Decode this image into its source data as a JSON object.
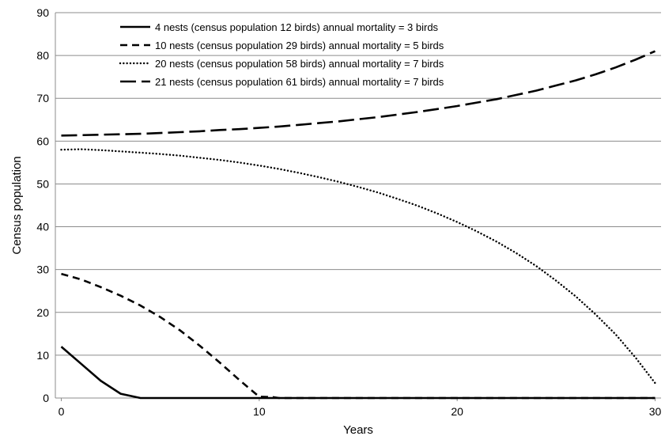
{
  "chart_data": {
    "type": "line",
    "xlabel": "Years",
    "ylabel": "Census population",
    "xlim": [
      -0.3,
      30.3
    ],
    "ylim": [
      0,
      90
    ],
    "x_ticks": [
      0,
      10,
      20,
      30
    ],
    "y_ticks": [
      0,
      10,
      20,
      30,
      40,
      50,
      60,
      70,
      80,
      90
    ],
    "grid": "horizontal",
    "legend_position": "top-center",
    "line_color": "#000000",
    "grid_color": "#8c8c8c",
    "series": [
      {
        "name": "4 nests (census population 12 birds)  annual mortality = 3 birds",
        "dash": "solid",
        "x": [
          0,
          1,
          2,
          3,
          4,
          5,
          10,
          15,
          20,
          25,
          30
        ],
        "y": [
          12,
          8,
          4,
          1,
          0,
          0,
          0,
          0,
          0,
          0,
          0
        ]
      },
      {
        "name": "10 nests (census population 29 birds)  annual mortality = 5 birds",
        "dash": "dashed",
        "x": [
          0,
          1,
          2,
          3,
          4,
          5,
          6,
          7,
          8,
          9,
          10,
          10.7,
          11,
          15,
          20,
          25,
          30
        ],
        "y": [
          29,
          27.7,
          25.9,
          23.9,
          21.6,
          18.9,
          15.8,
          12.2,
          8.3,
          4.2,
          0.3,
          0.2,
          0,
          0,
          0,
          0,
          0
        ]
      },
      {
        "name": "20 nests (census population 58 birds)  annual mortality = 7 birds",
        "dash": "dotted",
        "x": [
          0,
          1,
          2,
          3,
          4,
          5,
          6,
          7,
          8,
          9,
          10,
          11,
          12,
          13,
          14,
          15,
          16,
          17,
          18,
          19,
          20,
          21,
          22,
          23,
          24,
          25,
          26,
          27,
          28,
          29,
          30
        ],
        "y": [
          58,
          58.1,
          57.9,
          57.6,
          57.3,
          57,
          56.6,
          56.1,
          55.6,
          55,
          54.3,
          53.5,
          52.6,
          51.6,
          50.5,
          49.3,
          48,
          46.5,
          44.9,
          43.1,
          41.1,
          38.9,
          36.5,
          33.8,
          30.8,
          27.4,
          23.7,
          19.5,
          14.9,
          9.5,
          3.5
        ]
      },
      {
        "name": "21 nests (census population 61 birds)  annual mortality = 7 birds",
        "dash": "long-dash",
        "x": [
          0,
          1,
          2,
          3,
          4,
          5,
          6,
          7,
          8,
          9,
          10,
          11,
          12,
          13,
          14,
          15,
          16,
          17,
          18,
          19,
          20,
          21,
          22,
          23,
          24,
          25,
          26,
          27,
          28,
          29,
          30
        ],
        "y": [
          61.3,
          61.4,
          61.5,
          61.6,
          61.7,
          61.9,
          62.1,
          62.3,
          62.6,
          62.8,
          63.1,
          63.4,
          63.8,
          64.2,
          64.6,
          65.1,
          65.6,
          66.2,
          66.8,
          67.5,
          68.2,
          69,
          69.8,
          70.8,
          71.8,
          73,
          74.2,
          75.6,
          77.2,
          79,
          81
        ]
      }
    ]
  }
}
